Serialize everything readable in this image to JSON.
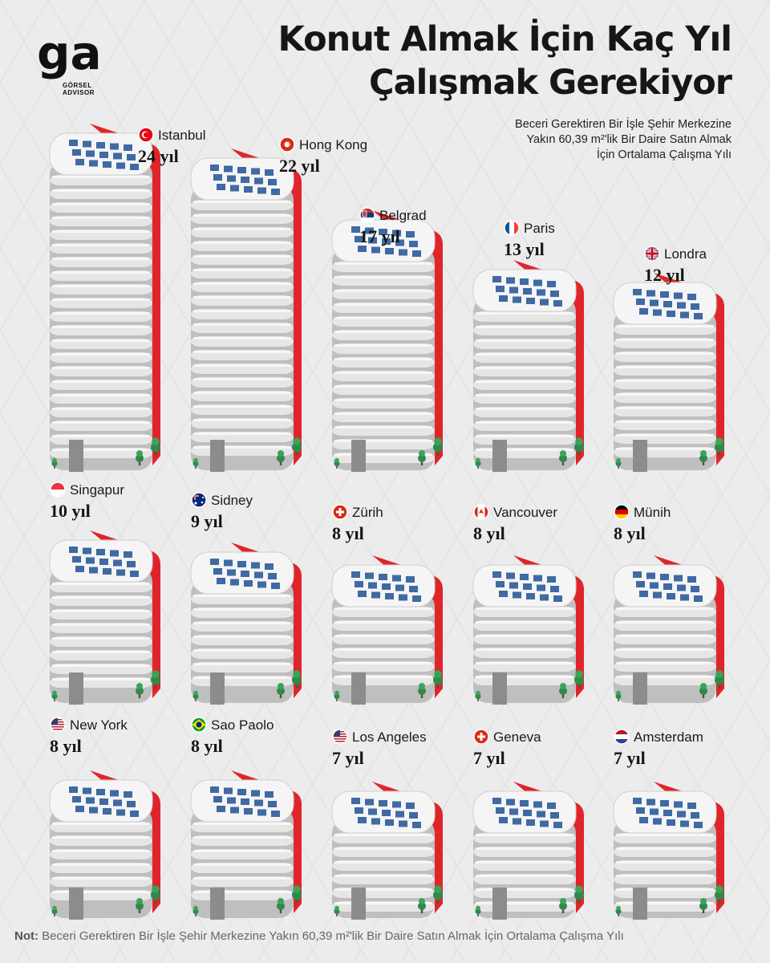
{
  "brand": {
    "logo_text": "ga",
    "line1": "GÖRSEL",
    "line2": "ADVISOR"
  },
  "title": {
    "line1": "Konut Almak İçin Kaç Yıl",
    "line2": "Çalışmak Gerekiyor"
  },
  "subtitle": {
    "line1": "Beceri Gerektiren Bir İşle Şehir Merkezine",
    "line2": "Yakın 60,39 m²'lik Bir Daire Satın Almak",
    "line3": "İçin Ortalama Çalışma Yılı"
  },
  "note": {
    "label": "Not:",
    "text": "Beceri Gerektiren Bir İşle Şehir Merkezine Yakın 60,39 m²'lik Bir Daire Satın Almak İçin Ortalama Çalışma Yılı"
  },
  "colors": {
    "accent": "#e0252a",
    "building": "#e6e6e6",
    "window": "#3f6aa3",
    "door": "#8c8c8c",
    "tree": "#2f8a4a"
  },
  "chart_data": {
    "type": "bar",
    "unit": "yıl",
    "categories": [
      "Istanbul",
      "Hong Kong",
      "Belgrad",
      "Paris",
      "Londra",
      "Singapur",
      "Sidney",
      "Zürih",
      "Vancouver",
      "Münih",
      "New York",
      "Sao Paolo",
      "Los Angeles",
      "Geneva",
      "Amsterdam"
    ],
    "values": [
      24,
      22,
      17,
      13,
      12,
      10,
      9,
      8,
      8,
      8,
      8,
      8,
      7,
      7,
      7
    ],
    "value_labels": [
      "24 yıl",
      "22 yıl",
      "17 yıl",
      "13 yıl",
      "12 yıl",
      "10 yıl",
      "9 yıl",
      "8 yıl",
      "8 yıl",
      "8 yıl",
      "8 yıl",
      "8 yıl",
      "7 yıl",
      "7 yıl",
      "7 yıl"
    ],
    "flags": [
      "turkey",
      "hong-kong",
      "serbia",
      "france",
      "united-kingdom",
      "singapore",
      "australia",
      "switzerland",
      "canada",
      "germany",
      "united-states",
      "brazil",
      "united-states",
      "switzerland",
      "netherlands"
    ],
    "title": "Konut Almak İçin Kaç Yıl Çalışmak Gerekiyor",
    "xlabel": "",
    "ylabel": ""
  }
}
